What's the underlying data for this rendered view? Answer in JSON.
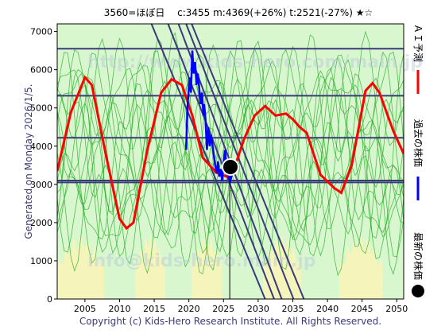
{
  "chart_data": {
    "type": "line",
    "title": "3560=ほぼ日　 c:3455  m:4369(+26%)  t:2521(-27%)  ★☆",
    "watermarks": [
      "http://www.kids-hero.com/main.jp",
      "info@kids-hero.main.jp"
    ],
    "side_label": "Generated on Monday 2026/1/5.",
    "footer": "Copyright (c) Kids-Hero Research Institute. All Rights Reserved.",
    "xlim": [
      2001,
      2051
    ],
    "ylim": [
      0,
      7200
    ],
    "x_ticks": [
      2005,
      2010,
      2015,
      2020,
      2025,
      2030,
      2035,
      2040,
      2045,
      2050
    ],
    "y_ticks": [
      0,
      1000,
      2000,
      3000,
      4000,
      5000,
      6000,
      7000
    ],
    "legend": [
      {
        "label": "ＡＩ予測",
        "color": "#ff0000",
        "marker": "line"
      },
      {
        "label": "過去の株価",
        "color": "#0000ff",
        "marker": "line"
      },
      {
        "label": "最新の株価",
        "color": "#000000",
        "marker": "dot"
      }
    ],
    "colors": {
      "ai": "#ff0000",
      "past": "#0000ff",
      "latest": "#000000",
      "band_green": "#b8f0a8",
      "band_yellow": "#f8f4b8",
      "thin_green": "#22aa22",
      "ref_line": "#3a3a7a",
      "side_text": "#3a3a7a"
    },
    "horizontal_lines": [
      6550,
      5320,
      4220,
      3100,
      3050
    ],
    "diagonal_lines": [
      {
        "from": [
          2014.6,
          7200
        ],
        "to": [
          2031.0,
          0
        ]
      },
      {
        "from": [
          2017.0,
          7200
        ],
        "to": [
          2032.3,
          0
        ]
      },
      {
        "from": [
          2018.5,
          7200
        ],
        "to": [
          2033.4,
          0
        ]
      },
      {
        "from": [
          2019.6,
          7200
        ],
        "to": [
          2035.1,
          0
        ]
      },
      {
        "from": [
          2020.4,
          7200
        ],
        "to": [
          2036.6,
          0
        ]
      }
    ],
    "ai_forecast": [
      [
        2001,
        3350
      ],
      [
        2003,
        4900
      ],
      [
        2005,
        5800
      ],
      [
        2006,
        5600
      ],
      [
        2008,
        3800
      ],
      [
        2010,
        2100
      ],
      [
        2011,
        1850
      ],
      [
        2012,
        2000
      ],
      [
        2014,
        3900
      ],
      [
        2016,
        5400
      ],
      [
        2017.5,
        5750
      ],
      [
        2019,
        5600
      ],
      [
        2020.5,
        4800
      ],
      [
        2022,
        3700
      ],
      [
        2024,
        3300
      ],
      [
        2025.5,
        3200
      ],
      [
        2026.5,
        3400
      ],
      [
        2028,
        4200
      ],
      [
        2029.5,
        4800
      ],
      [
        2031,
        5050
      ],
      [
        2032.5,
        4800
      ],
      [
        2034,
        4850
      ],
      [
        2035,
        4700
      ],
      [
        2036,
        4500
      ],
      [
        2037,
        4350
      ],
      [
        2038,
        3800
      ],
      [
        2039,
        3250
      ],
      [
        2041,
        2900
      ],
      [
        2042,
        2780
      ],
      [
        2043.5,
        3500
      ],
      [
        2045.5,
        5450
      ],
      [
        2046.5,
        5650
      ],
      [
        2047.5,
        5400
      ],
      [
        2049.5,
        4400
      ],
      [
        2051,
        3800
      ]
    ],
    "past_prices": [
      [
        2019.6,
        3900
      ],
      [
        2019.8,
        5000
      ],
      [
        2020.1,
        5800
      ],
      [
        2020.3,
        5400
      ],
      [
        2020.5,
        6500
      ],
      [
        2020.7,
        5900
      ],
      [
        2020.9,
        6200
      ],
      [
        2021.1,
        5600
      ],
      [
        2021.3,
        5900
      ],
      [
        2021.5,
        5500
      ],
      [
        2021.7,
        5100
      ],
      [
        2021.9,
        5400
      ],
      [
        2022.1,
        4800
      ],
      [
        2022.2,
        5100
      ],
      [
        2022.4,
        4700
      ],
      [
        2022.6,
        3900
      ],
      [
        2022.8,
        4500
      ],
      [
        2023.0,
        4000
      ],
      [
        2023.2,
        4300
      ],
      [
        2023.5,
        3900
      ],
      [
        2023.8,
        3500
      ],
      [
        2024.0,
        3300
      ],
      [
        2024.2,
        3600
      ],
      [
        2024.4,
        3200
      ],
      [
        2024.6,
        3400
      ],
      [
        2024.8,
        3100
      ],
      [
        2025.0,
        3550
      ],
      [
        2025.2,
        3900
      ],
      [
        2025.4,
        3500
      ],
      [
        2025.6,
        3300
      ],
      [
        2025.8,
        3150
      ],
      [
        2026.0,
        3100
      ],
      [
        2026.2,
        3250
      ]
    ],
    "latest_point": [
      2026.0,
      3455
    ],
    "latest_vline_x": 2025.9
  }
}
